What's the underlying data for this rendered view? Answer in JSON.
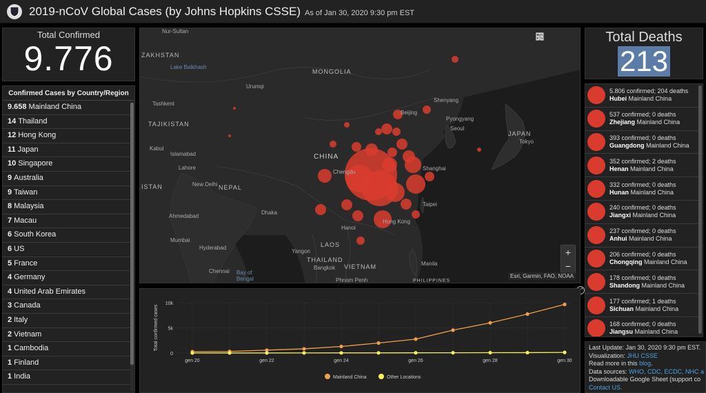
{
  "header": {
    "title": "2019-nCoV Global Cases (by Johns Hopkins CSSE)",
    "as_of": "As of Jan 30, 2020 9:30 pm EST"
  },
  "confirmed": {
    "label": "Total Confirmed",
    "value": "9.776"
  },
  "country_list": {
    "heading": "Confirmed Cases by Country/Region",
    "items": [
      {
        "count": "9.658",
        "name": "Mainland China"
      },
      {
        "count": "14",
        "name": "Thailand"
      },
      {
        "count": "12",
        "name": "Hong Kong"
      },
      {
        "count": "11",
        "name": "Japan"
      },
      {
        "count": "10",
        "name": "Singapore"
      },
      {
        "count": "9",
        "name": "Australia"
      },
      {
        "count": "9",
        "name": "Taiwan"
      },
      {
        "count": "8",
        "name": "Malaysia"
      },
      {
        "count": "7",
        "name": "Macau"
      },
      {
        "count": "6",
        "name": "South Korea"
      },
      {
        "count": "6",
        "name": "US"
      },
      {
        "count": "5",
        "name": "France"
      },
      {
        "count": "4",
        "name": "Germany"
      },
      {
        "count": "4",
        "name": "United Arab Emirates"
      },
      {
        "count": "3",
        "name": "Canada"
      },
      {
        "count": "2",
        "name": "Italy"
      },
      {
        "count": "2",
        "name": "Vietnam"
      },
      {
        "count": "1",
        "name": "Cambodia"
      },
      {
        "count": "1",
        "name": "Finland"
      },
      {
        "count": "1",
        "name": "India"
      }
    ]
  },
  "map": {
    "labels": {
      "nursultan": "Nur-Sultan",
      "zakhstan": "ZAKHSTAN",
      "mongolia": "MONGOLIA",
      "lake_balkhash": "Lake Balkhash",
      "urumqi": "Urumqi",
      "beijing": "Beijing",
      "shenyang": "Shenyang",
      "pyongyang": "Pyongyang",
      "seoul": "Seoul",
      "japan": "JAPAN",
      "tokyo": "Tokyo",
      "tashkent": "Tashkent",
      "tajikistan": "TAJIKISTAN",
      "kabul": "Kabul",
      "islamabad": "Islamabad",
      "lahore": "Lahore",
      "china": "CHINA",
      "chengdu": "Chengdu",
      "shanghai": "Shanghai",
      "istan": "ISTAN",
      "new_delhi": "New Delhi",
      "nepal": "NEPAL",
      "taipei": "Taipei",
      "ahmedabad": "Ahmedabad",
      "dhaka": "Dhaka",
      "hong_kong": "Hong Kong",
      "hanoi": "Hanoi",
      "mumbai": "Mumbai",
      "hyderabad": "Hyderabad",
      "yangon": "Yangon",
      "laos": "LAOS",
      "thailand": "THAILAND",
      "bangkok": "Bangkok",
      "chennai": "Chennai",
      "bay_of_bengal": "Bay of Bengal",
      "vietnam": "VIETNAM",
      "manila": "Manila",
      "phnom_penh": "Phnom Penh",
      "philippines": "PHILIPPINES"
    },
    "attribution": "Esri, Garmin, FAO, NOAA",
    "zoom_in": "+",
    "zoom_out": "−",
    "tool_icons": [
      "bookmark-icon",
      "list-icon",
      "qr-icon"
    ]
  },
  "chart_data": {
    "type": "line",
    "ylabel": "Total confirmed cases",
    "x": [
      "gen 20",
      "gen 21",
      "gen 22",
      "gen 23",
      "gen 24",
      "gen 25",
      "gen 26",
      "gen 27",
      "gen 28",
      "gen 29",
      "gen 30"
    ],
    "xtick_labels": [
      "gen 20",
      "gen 22",
      "gen 24",
      "gen 26",
      "gen 28",
      "gen 30"
    ],
    "ytick_labels": [
      "0",
      "5k",
      "10k"
    ],
    "ylim": [
      0,
      10000
    ],
    "series": [
      {
        "name": "Mainland China",
        "color": "#f0a04b",
        "values": [
          278,
          309,
          571,
          830,
          1297,
          1985,
          2761,
          4537,
          5997,
          7736,
          9658
        ]
      },
      {
        "name": "Other Locations",
        "color": "#f7f05a",
        "values": [
          4,
          6,
          9,
          14,
          23,
          29,
          40,
          56,
          64,
          75,
          118
        ]
      }
    ],
    "legend_position": "bottom-center"
  },
  "deaths": {
    "label": "Total Deaths",
    "value": "213"
  },
  "death_list": [
    {
      "stats": "5.806 confirmed; 204 deaths",
      "province": "Hubei",
      "region": "Mainland China"
    },
    {
      "stats": "537 confirmed; 0 deaths",
      "province": "Zhejiang",
      "region": "Mainland China"
    },
    {
      "stats": "393 confirmed; 0 deaths",
      "province": "Guangdong",
      "region": "Mainland China"
    },
    {
      "stats": "352 confirmed; 2 deaths",
      "province": "Henan",
      "region": "Mainland China"
    },
    {
      "stats": "332 confirmed; 0 deaths",
      "province": "Hunan",
      "region": "Mainland China"
    },
    {
      "stats": "240 confirmed; 0 deaths",
      "province": "Jiangxi",
      "region": "Mainland China"
    },
    {
      "stats": "237 confirmed; 0 deaths",
      "province": "Anhui",
      "region": "Mainland China"
    },
    {
      "stats": "206 confirmed; 0 deaths",
      "province": "Chongqing",
      "region": "Mainland China"
    },
    {
      "stats": "178 confirmed; 0 deaths",
      "province": "Shandong",
      "region": "Mainland China"
    },
    {
      "stats": "177 confirmed; 1 deaths",
      "province": "Sichuan",
      "region": "Mainland China"
    },
    {
      "stats": "168 confirmed; 0 deaths",
      "province": "Jiangsu",
      "region": "Mainland China"
    }
  ],
  "info": {
    "last_update": "Last Update: Jan 30, 2020 9:30 pm EST.",
    "visualization_prefix": "Visualization:",
    "visualization_link": "JHU CSSE",
    "readmore_prefix": "Read more in this",
    "readmore_link": "blog",
    "sources_prefix": "Data sources:",
    "sources_links": "WHO, CDC, ECDC, NHC a",
    "sheet_text": "Downloadable Google Sheet (support co",
    "contact_link": "Contact US."
  },
  "colors": {
    "bubble": "#d93c2e",
    "panel_bg": "#222222",
    "accent_blue": "#5a7ca6",
    "link": "#4fa3e0"
  }
}
